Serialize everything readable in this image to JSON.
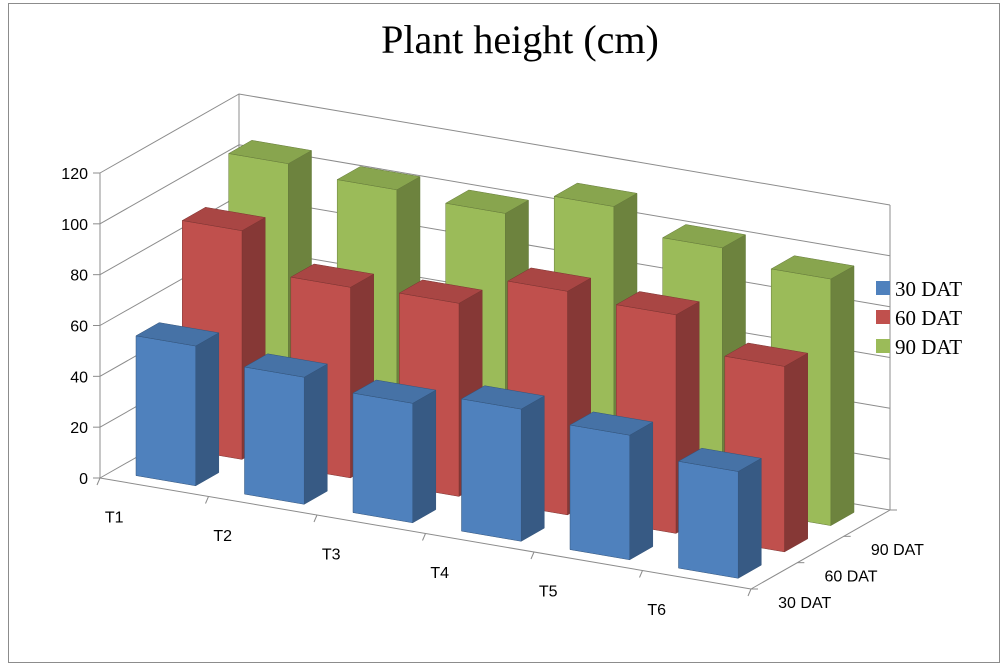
{
  "chart_data": {
    "type": "bar",
    "title": "Plant height (cm)",
    "categories": [
      "T1",
      "T2",
      "T3",
      "T4",
      "T5",
      "T6"
    ],
    "depth_labels": [
      "90 DAT",
      "60 DAT",
      "30 DAT"
    ],
    "ylim": [
      0,
      120
    ],
    "yticks": [
      0,
      20,
      40,
      60,
      80,
      100,
      120
    ],
    "grid": true,
    "legend_position": "right",
    "series": [
      {
        "name": "30 DAT",
        "color": "#4f81bd",
        "values": [
          55,
          50,
          47,
          52,
          49,
          42
        ]
      },
      {
        "name": "60 DAT",
        "color": "#c0504d",
        "values": [
          90,
          75,
          76,
          88,
          86,
          73
        ]
      },
      {
        "name": "90 DAT",
        "color": "#9bbb59",
        "values": [
          106,
          103,
          101,
          111,
          102,
          97
        ]
      }
    ]
  }
}
